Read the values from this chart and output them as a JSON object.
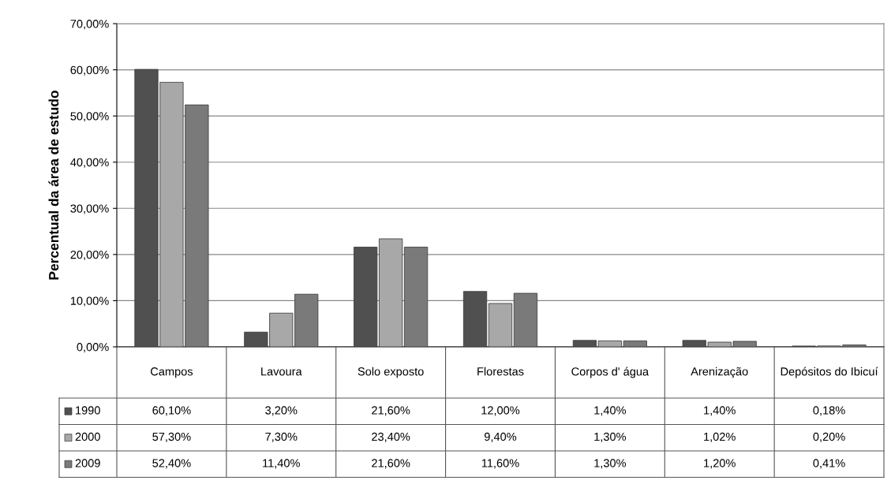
{
  "chart_data": {
    "type": "bar",
    "ylabel": "Percentual da área de estudo",
    "categories": [
      "Campos",
      "Lavoura",
      "Solo exposto",
      "Florestas",
      "Corpos d' água",
      "Arenização",
      "Depósitos do Ibicuí"
    ],
    "series": [
      {
        "name": "1990",
        "color": "#505050",
        "values": [
          60.1,
          3.2,
          21.6,
          12.0,
          1.4,
          1.4,
          0.18
        ],
        "value_labels": [
          "60,10%",
          "3,20%",
          "21,60%",
          "12,00%",
          "1,40%",
          "1,40%",
          "0,18%"
        ]
      },
      {
        "name": "2000",
        "color": "#a8a8a8",
        "values": [
          57.3,
          7.3,
          23.4,
          9.4,
          1.3,
          1.02,
          0.2
        ],
        "value_labels": [
          "57,30%",
          "7,30%",
          "23,40%",
          "9,40%",
          "1,30%",
          "1,02%",
          "0,20%"
        ]
      },
      {
        "name": "2009",
        "color": "#7a7a7a",
        "values": [
          52.4,
          11.4,
          21.6,
          11.6,
          1.3,
          1.2,
          0.41
        ],
        "value_labels": [
          "52,40%",
          "11,40%",
          "21,60%",
          "11,60%",
          "1,30%",
          "1,20%",
          "0,41%"
        ]
      }
    ],
    "ylim": [
      0,
      70
    ],
    "yticks": [
      {
        "value": 0,
        "label": "0,00%"
      },
      {
        "value": 10,
        "label": "10,00%"
      },
      {
        "value": 20,
        "label": "20,00%"
      },
      {
        "value": 30,
        "label": "30,00%"
      },
      {
        "value": 40,
        "label": "40,00%"
      },
      {
        "value": 50,
        "label": "50,00%"
      },
      {
        "value": 60,
        "label": "60,00%"
      },
      {
        "value": 70,
        "label": "70,00%"
      }
    ],
    "grid": "y",
    "legend": "bottom left"
  }
}
